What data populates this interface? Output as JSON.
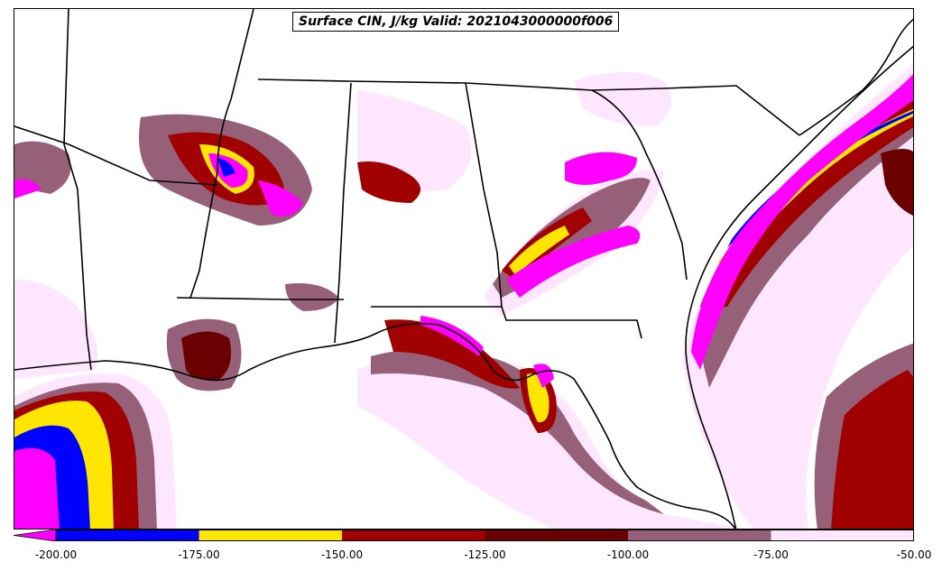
{
  "map": {
    "title": "Surface CIN, J/kg Valid: 2021043000000f006",
    "variable": "Surface CIN",
    "units": "J/kg",
    "colors": {
      "lt_-200": "#ff00ff",
      "-200_-175": "#0000ff",
      "-175_-150": "#ffe600",
      "-150_-125": "#a00000",
      "-125_-100": "#6b0000",
      "-100_-75": "#966078",
      "-75_-50": "#ffe6ff"
    }
  },
  "colorbar": {
    "ticks": [
      "-200.00",
      "-175.00",
      "-150.00",
      "-125.00",
      "-100.00",
      "-75.00",
      "-50.00"
    ],
    "colors": [
      "#0000ff",
      "#ffe600",
      "#a00000",
      "#6b0000",
      "#966078",
      "#ffe6ff"
    ],
    "underflow_color": "#ff00ff"
  }
}
